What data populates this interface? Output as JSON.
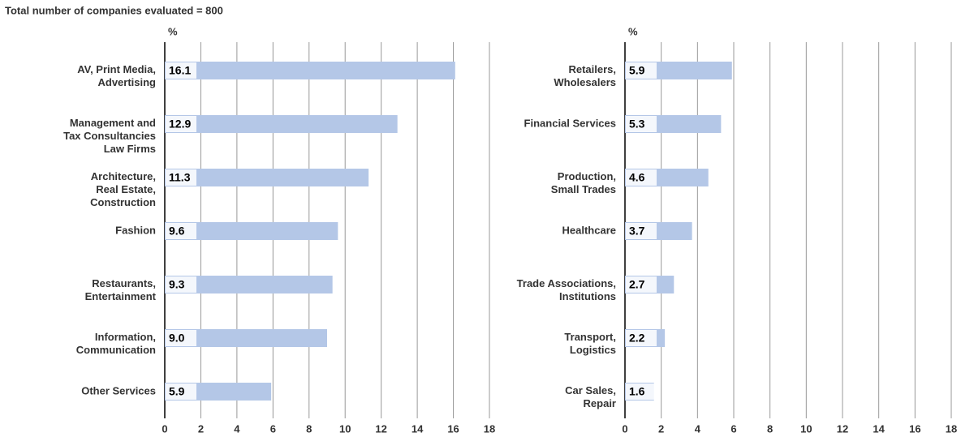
{
  "title": "Total number of companies evaluated = 800",
  "chart_data": [
    {
      "type": "bar",
      "orientation": "horizontal",
      "xlabel": "%",
      "color": "#b4c7e7",
      "grid": true,
      "categories": [
        "AV, Print Media,\nAdvertising",
        "Management and\nTax Consultancies\nLaw Firms",
        "Architecture,\nReal Estate,\nConstruction",
        "Fashion",
        "Restaurants,\nEntertainment",
        "Information,\nCommunication",
        "Other Services"
      ],
      "values": [
        16.1,
        12.9,
        11.3,
        9.6,
        9.3,
        9.0,
        5.9
      ],
      "value_labels": [
        "16.1",
        "12.9",
        "11.3",
        "9.6",
        "9.3",
        "9.0",
        "5.9"
      ],
      "xlim": [
        0,
        18
      ],
      "xticks": [
        0,
        2,
        4,
        6,
        8,
        10,
        12,
        14,
        16,
        18
      ]
    },
    {
      "type": "bar",
      "orientation": "horizontal",
      "xlabel": "%",
      "color": "#b4c7e7",
      "grid": true,
      "categories": [
        "Retailers,\nWholesalers",
        "Financial Services",
        "Production,\nSmall Trades",
        "Healthcare",
        "Trade Associations,\nInstitutions",
        "Transport,\nLogistics",
        "Car Sales,\nRepair"
      ],
      "values": [
        5.9,
        5.3,
        4.6,
        3.7,
        2.7,
        2.2,
        1.6
      ],
      "value_labels": [
        "5.9",
        "5.3",
        "4.6",
        "3.7",
        "2.7",
        "2.2",
        "1.6"
      ],
      "xlim": [
        0,
        18
      ],
      "xticks": [
        0,
        2,
        4,
        6,
        8,
        10,
        12,
        14,
        16,
        18
      ]
    }
  ]
}
